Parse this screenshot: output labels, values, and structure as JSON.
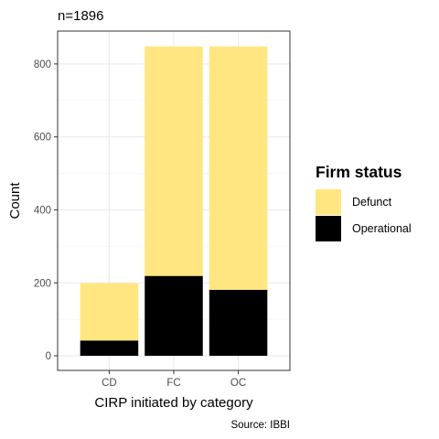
{
  "chart_data": {
    "type": "bar",
    "stacked": true,
    "title": "n=1896",
    "xlabel": "CIRP initiated by category",
    "ylabel": "Count",
    "caption": "Source: IBBI",
    "categories": [
      "CD",
      "FC",
      "OC"
    ],
    "series": [
      {
        "name": "Operational",
        "values": [
          42,
          219,
          181
        ],
        "color": "#000000"
      },
      {
        "name": "Defunct",
        "values": [
          157,
          629,
          667
        ],
        "color": "#FFE680"
      }
    ],
    "ylim": [
      -40,
      890
    ],
    "yticks": [
      0,
      200,
      400,
      600,
      800
    ],
    "grid": true,
    "legend": {
      "title": "Firm status",
      "position": "right",
      "entries": [
        {
          "label": "Defunct",
          "color": "#FFE680"
        },
        {
          "label": "Operational",
          "color": "#000000"
        }
      ]
    }
  }
}
